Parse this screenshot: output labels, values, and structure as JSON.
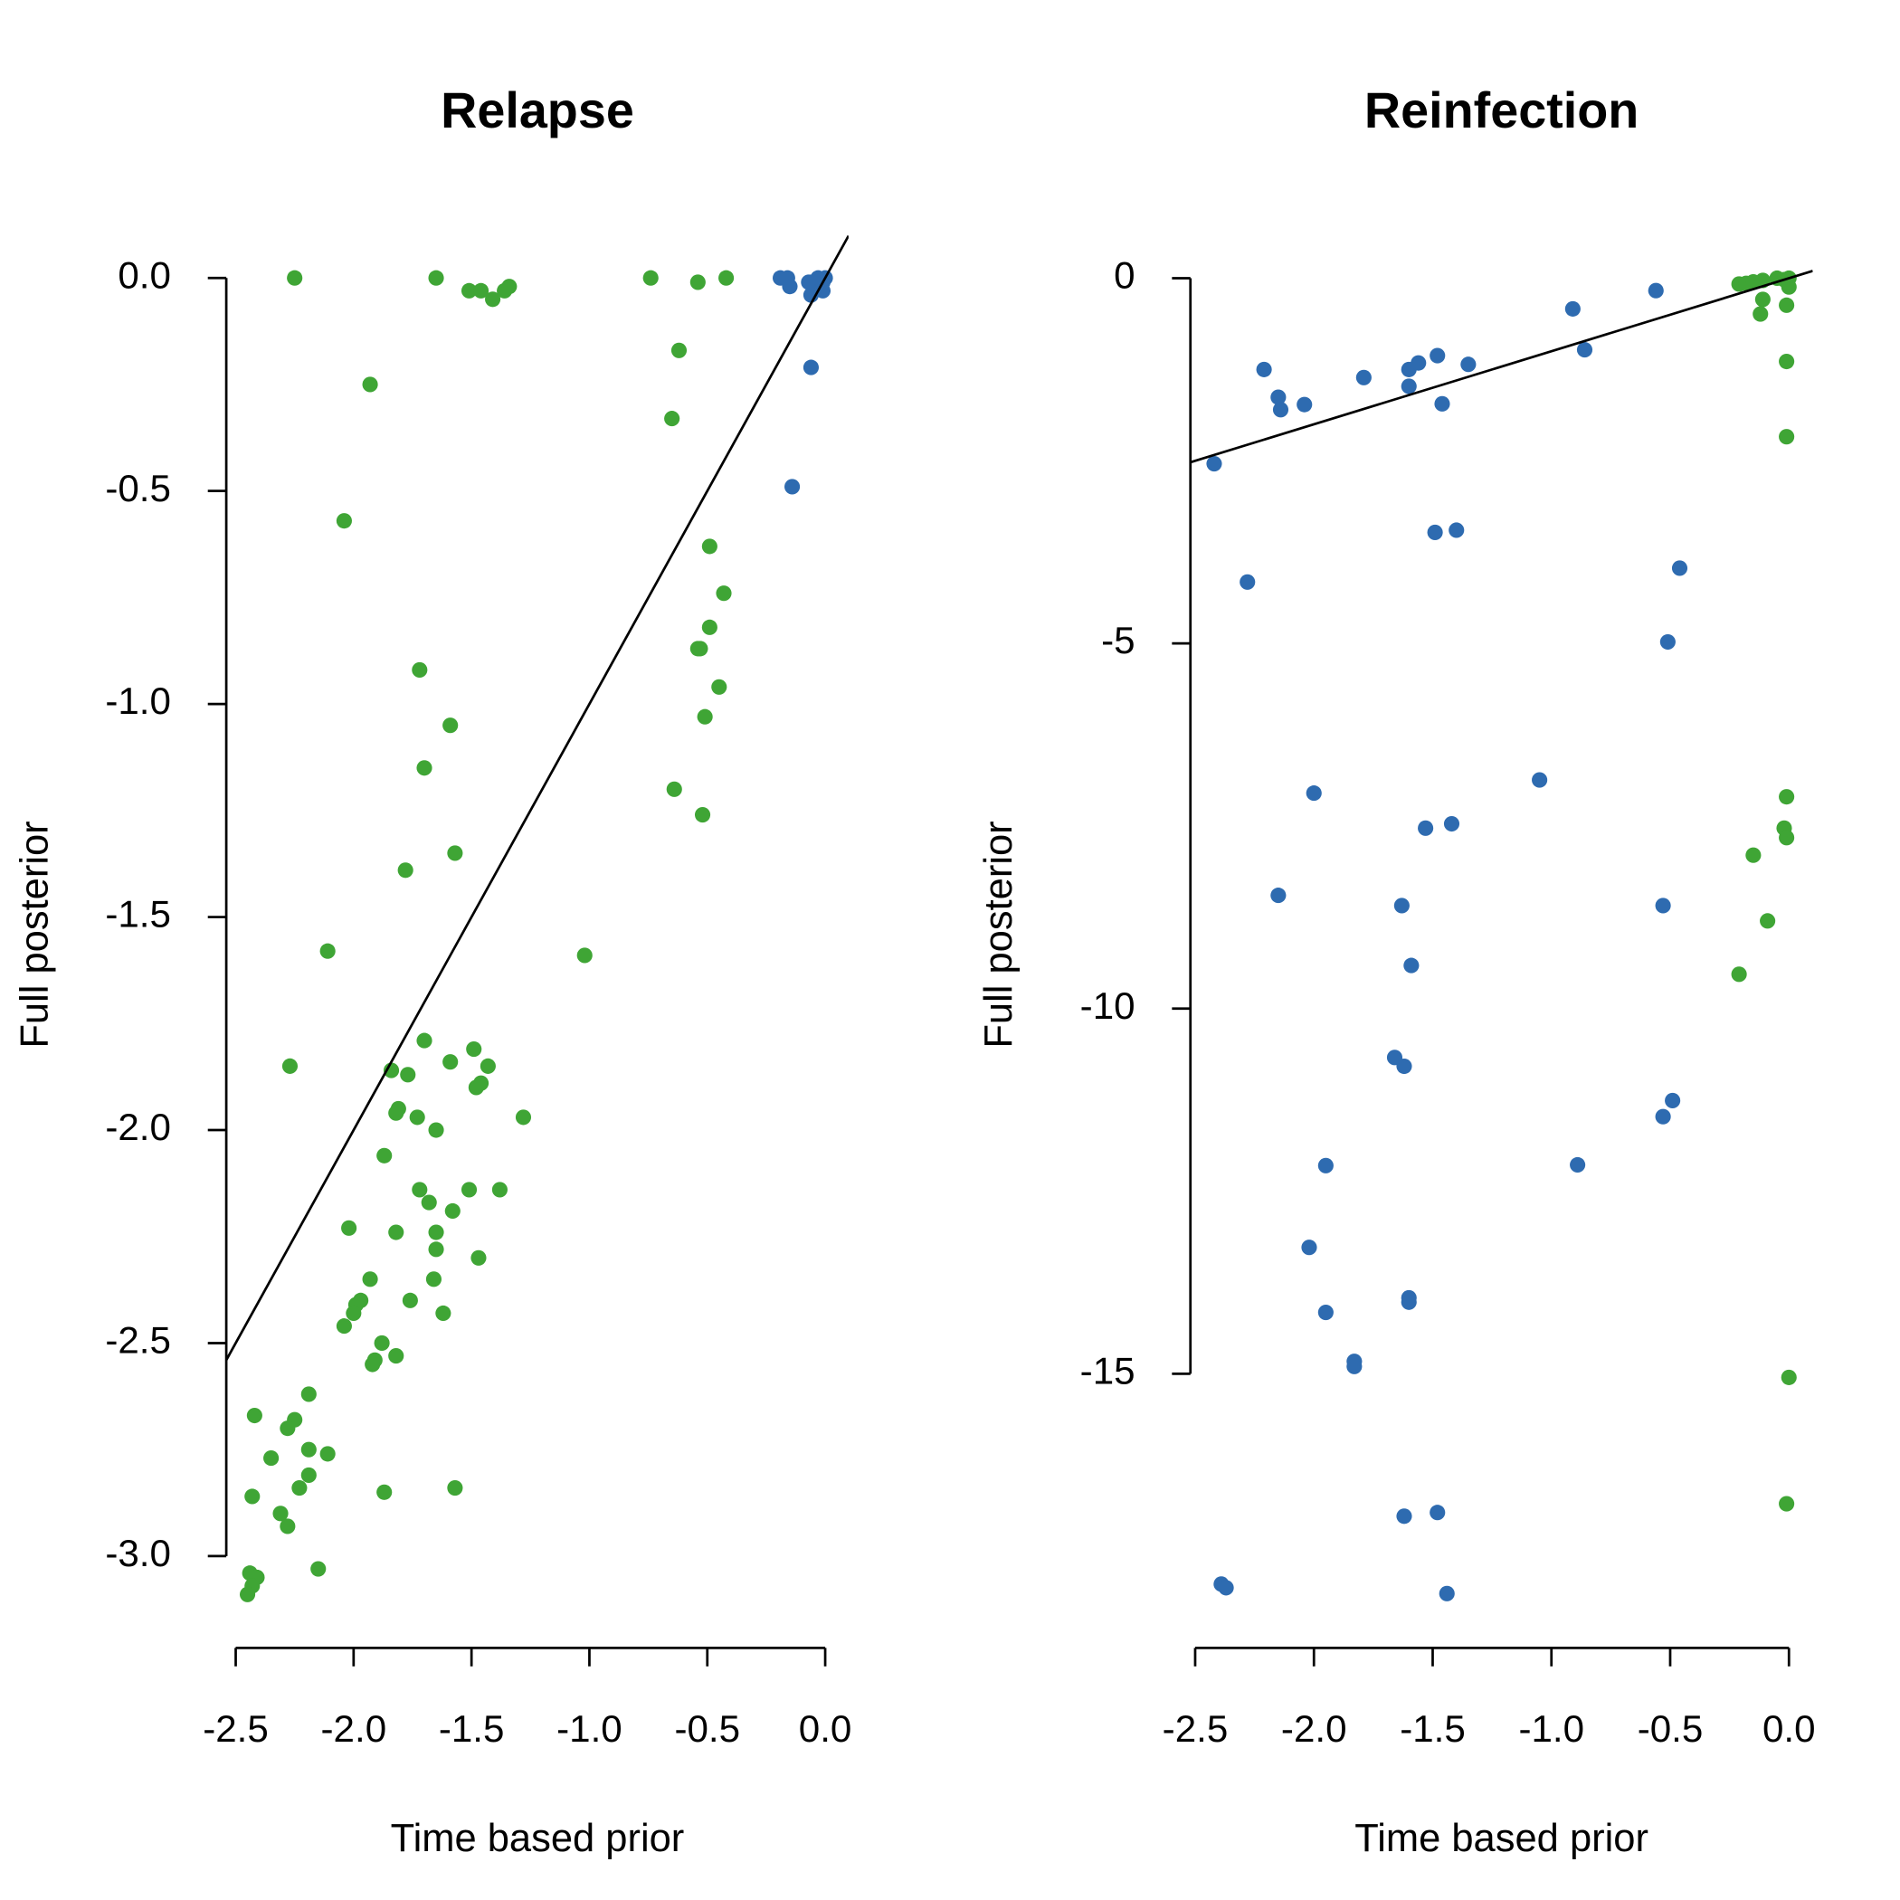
{
  "chart_data": [
    {
      "type": "scatter",
      "title": "Relapse",
      "x_label": "Time based prior",
      "y_label": "Full posterior",
      "xlim": [
        -2.54,
        0.099
      ],
      "ylim": [
        -3.1,
        0.104
      ],
      "xticks": [
        -2.5,
        {
          "value": -2.0,
          "label": "-2.0"
        },
        -1.5,
        {
          "value": -1.0,
          "label": "-1.0"
        },
        -0.5,
        {
          "value": 0,
          "label": "0.0"
        }
      ],
      "yticks": [
        {
          "value": 0,
          "label": "0.0"
        },
        -0.5,
        {
          "value": -1.0,
          "label": "-1.0"
        },
        -1.5,
        {
          "value": -2.0,
          "label": "-2.0"
        },
        -2.5,
        {
          "value": -3.0,
          "label": "-3.0"
        }
      ],
      "reference_line": {
        "slope": 1,
        "intercept": 0
      },
      "series": [
        {
          "color": "#3fa535",
          "x": [
            -2.25,
            -1.65,
            -1.51,
            -1.46,
            -1.41,
            -1.36,
            -1.34,
            -0.74,
            -0.54,
            -0.42,
            -1.93,
            -0.62,
            -0.65,
            -2.04,
            -0.49,
            -0.43,
            -0.49,
            -0.54,
            -0.53,
            -0.45,
            -1.72,
            -1.59,
            -0.51,
            -1.7,
            -0.64,
            -0.52,
            -1.57,
            -1.78,
            -2.11,
            -1.02,
            -2.27,
            -1.7,
            -1.49,
            -1.59,
            -1.43,
            -1.84,
            -1.77,
            -1.46,
            -1.48,
            -1.28,
            -1.81,
            -1.82,
            -1.73,
            -1.65,
            -1.87,
            -1.72,
            -1.68,
            -1.51,
            -1.38,
            -1.58,
            -2.02,
            -1.82,
            -1.65,
            -1.65,
            -1.47,
            -1.93,
            -1.66,
            -1.97,
            -1.99,
            -2.0,
            -1.76,
            -1.62,
            -2.04,
            -1.88,
            -1.82,
            -1.91,
            -1.92,
            -2.42,
            -2.25,
            -2.28,
            -2.19,
            -2.19,
            -2.11,
            -2.35,
            -2.19,
            -2.23,
            -2.43,
            -1.87,
            -1.57,
            -2.31,
            -2.28,
            -2.15,
            -2.44,
            -2.41,
            -2.43,
            -2.45
          ],
          "y": [
            0,
            0,
            -0.03,
            -0.03,
            -0.05,
            -0.03,
            -0.02,
            0,
            -0.01,
            0,
            -0.25,
            -0.17,
            -0.33,
            -0.57,
            -0.63,
            -0.74,
            -0.82,
            -0.87,
            -0.87,
            -0.96,
            -0.92,
            -1.05,
            -1.03,
            -1.15,
            -1.2,
            -1.26,
            -1.35,
            -1.39,
            -1.58,
            -1.59,
            -1.85,
            -1.79,
            -1.81,
            -1.84,
            -1.85,
            -1.86,
            -1.87,
            -1.89,
            -1.9,
            -1.97,
            -1.95,
            -1.96,
            -1.97,
            -2.0,
            -2.06,
            -2.14,
            -2.17,
            -2.14,
            -2.14,
            -2.19,
            -2.23,
            -2.24,
            -2.24,
            -2.28,
            -2.3,
            -2.35,
            -2.35,
            -2.4,
            -2.41,
            -2.43,
            -2.4,
            -2.43,
            -2.46,
            -2.5,
            -2.53,
            -2.54,
            -2.55,
            -2.67,
            -2.68,
            -2.7,
            -2.62,
            -2.75,
            -2.76,
            -2.77,
            -2.81,
            -2.84,
            -2.86,
            -2.85,
            -2.84,
            -2.9,
            -2.93,
            -3.03,
            -3.04,
            -3.05,
            -3.07,
            -3.09
          ]
        },
        {
          "color": "#2e6bb0",
          "x": [
            -0.19,
            -0.16,
            -0.15,
            -0.07,
            -0.06,
            -0.06,
            -0.03,
            -0.01,
            -0.01,
            0,
            -0.06,
            -0.14
          ],
          "y": [
            0,
            0,
            -0.02,
            -0.01,
            -0.01,
            -0.04,
            0,
            -0.01,
            -0.03,
            0,
            -0.21,
            -0.49
          ]
        }
      ]
    },
    {
      "type": "scatter",
      "title": "Reinfection",
      "x_label": "Time based prior",
      "y_label": "Full posterior",
      "xlim": [
        -2.52,
        0.1
      ],
      "ylim": [
        -18.08,
        0.61
      ],
      "xticks": [
        -2.5,
        {
          "value": -2.0,
          "label": "-2.0"
        },
        -1.5,
        {
          "value": -1.0,
          "label": "-1.0"
        },
        -0.5,
        {
          "value": 0,
          "label": "0.0"
        }
      ],
      "yticks": [
        0,
        -5,
        -10,
        -15
      ],
      "reference_line": {
        "slope": 1,
        "intercept": 0
      },
      "series": [
        {
          "color": "#2e6bb0",
          "x": [
            -2.42,
            -2.28,
            -2.21,
            -2.15,
            -2.14,
            -2.04,
            -1.79,
            -1.6,
            -1.56,
            -1.6,
            -1.48,
            -1.46,
            -1.35,
            -0.91,
            -0.86,
            -0.56,
            -1.49,
            -1.4,
            -0.46,
            -0.51,
            -1.05,
            -2.0,
            -1.53,
            -1.42,
            -2.15,
            -1.63,
            -0.53,
            -1.59,
            -1.66,
            -1.62,
            -0.53,
            -0.49,
            -1.95,
            -0.89,
            -2.02,
            -1.6,
            -1.6,
            -1.95,
            -1.83,
            -1.83,
            -1.62,
            -1.48,
            -2.39,
            -2.37,
            -1.44
          ],
          "y": [
            -2.54,
            -4.16,
            -1.25,
            -1.63,
            -1.8,
            -1.73,
            -1.36,
            -1.25,
            -1.16,
            -1.48,
            -1.06,
            -1.72,
            -1.18,
            -0.42,
            -0.98,
            -0.17,
            -3.48,
            -3.45,
            -3.97,
            -4.98,
            -6.87,
            -7.05,
            -7.53,
            -7.47,
            -8.45,
            -8.59,
            -8.59,
            -9.41,
            -10.67,
            -10.79,
            -11.48,
            -11.26,
            -12.15,
            -12.14,
            -13.27,
            -13.96,
            -14.02,
            -14.16,
            -14.83,
            -14.9,
            -16.95,
            -16.9,
            -17.88,
            -17.93,
            -18.01
          ]
        },
        {
          "color": "#3fa535",
          "x": [
            -0.21,
            -0.18,
            -0.15,
            -0.11,
            -0.05,
            -0.02,
            0,
            0,
            -0.11,
            -0.12,
            -0.01,
            -0.01,
            -0.01,
            -0.01,
            -0.02,
            -0.01,
            -0.15,
            -0.09,
            -0.21,
            0,
            -0.01
          ],
          "y": [
            -0.08,
            -0.07,
            -0.05,
            -0.03,
            0,
            -0.02,
            0,
            -0.12,
            -0.29,
            -0.49,
            -0.37,
            -1.14,
            -2.17,
            -7.1,
            -7.53,
            -7.66,
            -7.9,
            -8.8,
            -9.53,
            -15.05,
            -16.78
          ]
        }
      ]
    }
  ]
}
